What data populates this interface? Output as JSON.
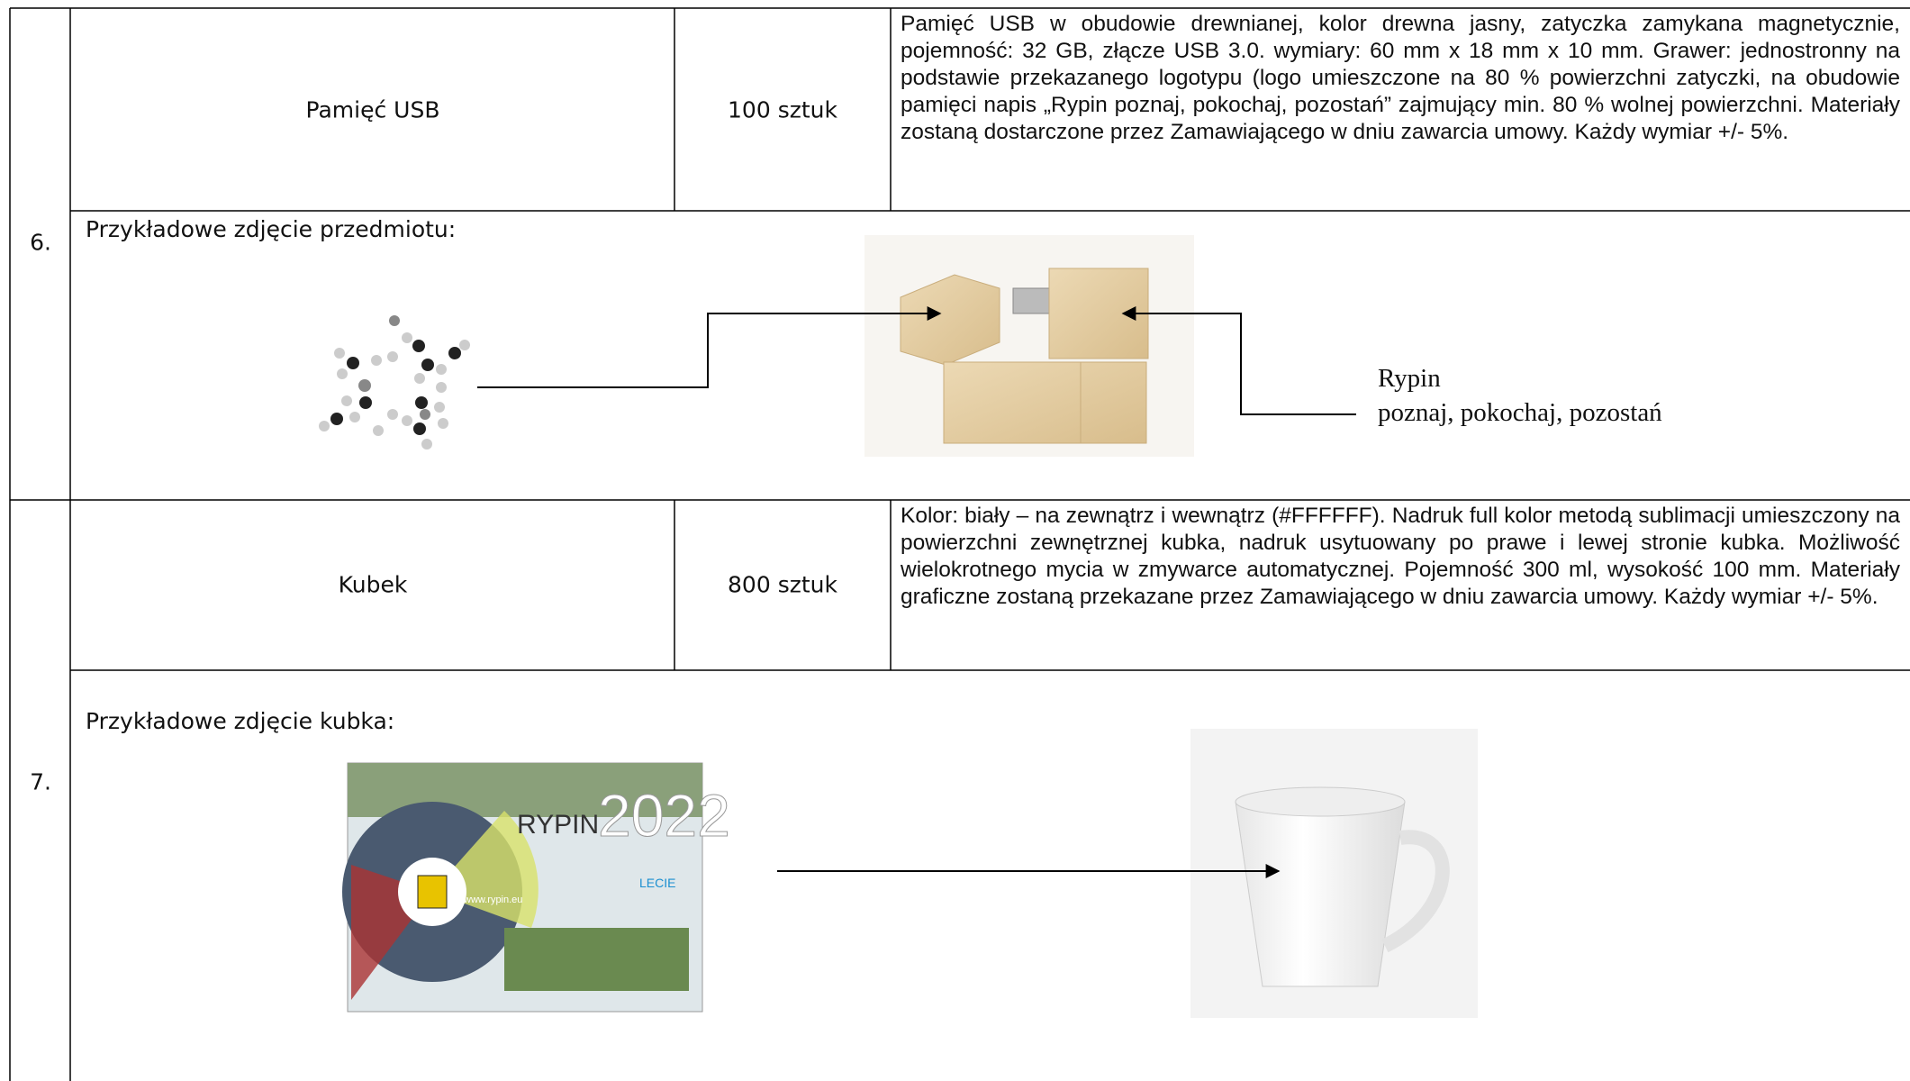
{
  "rows": [
    {
      "number": "6.",
      "name": "Pamięć USB",
      "quantity": "100 sztuk",
      "description": "Pamięć USB w obudowie drewnianej, kolor drewna jasny, zatyczka zamykana magnetycznie, pojemność: 32 GB, złącze USB 3.0. wymiary: 60 mm x 18 mm x  10 mm. Grawer: jednostronny na podstawie przekazanego logotypu (logo umieszczone na 80 % powierzchni zatyczki, na obudowie pamięci napis „Rypin poznaj, pokochaj, pozostań”  zajmujący min. 80 % wolnej powierzchni. Materiały zostaną dostarczone przez Zamawiającego w dniu zawarcia umowy. Każdy wymiar +/- 5%.",
      "photo_label": "Przykładowe zdjęcie przedmiotu:",
      "engraving": [
        "Rypin",
        "poznaj, pokochaj, pozostań"
      ]
    },
    {
      "number": "7.",
      "name": "Kubek",
      "quantity": "800 sztuk",
      "description": "Kolor: biały – na zewnątrz i wewnątrz (#FFFFFF). Nadruk full kolor metodą sublimacji umieszczony na powierzchni zewnętrznej kubka, nadruk usytuowany po prawe i lewej stronie kubka. Możliwość wielokrotnego mycia w zmywarce automatycznej. Pojemność 300 ml, wysokość 100 mm. Materiały graficzne zostaną przekazane przez Zamawiającego w dniu zawarcia umowy. Każdy wymiar +/- 5%.",
      "photo_label": "Przykładowe zdjęcie kubka:",
      "poster": [
        "RYPIN",
        "2022",
        "www.rypin.eu",
        "LECIE"
      ]
    }
  ]
}
